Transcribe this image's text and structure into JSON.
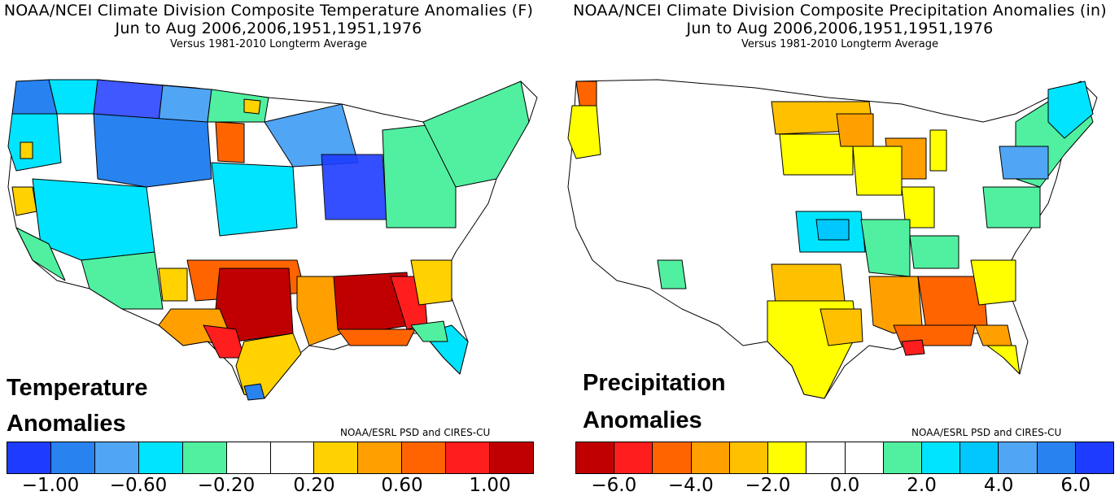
{
  "temperature_panel": {
    "title_line1": "NOAA/NCEI Climate Division Composite Temperature Anomalies (F)",
    "title_line2": "Jun to Aug   2006,2006,1951,1951,1976",
    "title_line3": "Versus 1981-2010 Longterm Average",
    "overlay_label_line1": "Temperature",
    "overlay_label_line2": "Anomalies",
    "credit": "NOAA/ESRL PSD and CIRES-CU",
    "colorbar": {
      "colors": [
        "#1e3cff",
        "#2882f0",
        "#50a5f5",
        "#00e4ff",
        "#50f0a0",
        "#ffffff",
        "#ffffff",
        "#ffd200",
        "#ffa000",
        "#ff6400",
        "#ff1e1e",
        "#c00000"
      ],
      "tick_labels": [
        "−1.00",
        "−0.60",
        "−0.20",
        "0.20",
        "0.60",
        "1.00"
      ]
    }
  },
  "precipitation_panel": {
    "title_line1": "NOAA/NCEI Climate Division Composite Precipitation Anomalies (in)",
    "title_line2": "Jun to Aug   2006,2006,1951,1951,1976",
    "title_line3": "Versus 1981-2010 Longterm Average",
    "overlay_label_line1": "Precipitation",
    "overlay_label_line2": "Anomalies",
    "credit": "NOAA/ESRL PSD and CIRES-CU",
    "colorbar": {
      "colors": [
        "#c00000",
        "#ff1e1e",
        "#ff6400",
        "#ffa000",
        "#ffc000",
        "#ffff00",
        "#ffffff",
        "#ffffff",
        "#50f0a0",
        "#00e4ff",
        "#00c8ff",
        "#50a5f5",
        "#2882f0",
        "#1e3cff"
      ],
      "tick_labels": [
        "−6.0",
        "−4.0",
        "−2.0",
        "0.0",
        "2.0",
        "4.0",
        "6.0"
      ]
    }
  }
}
